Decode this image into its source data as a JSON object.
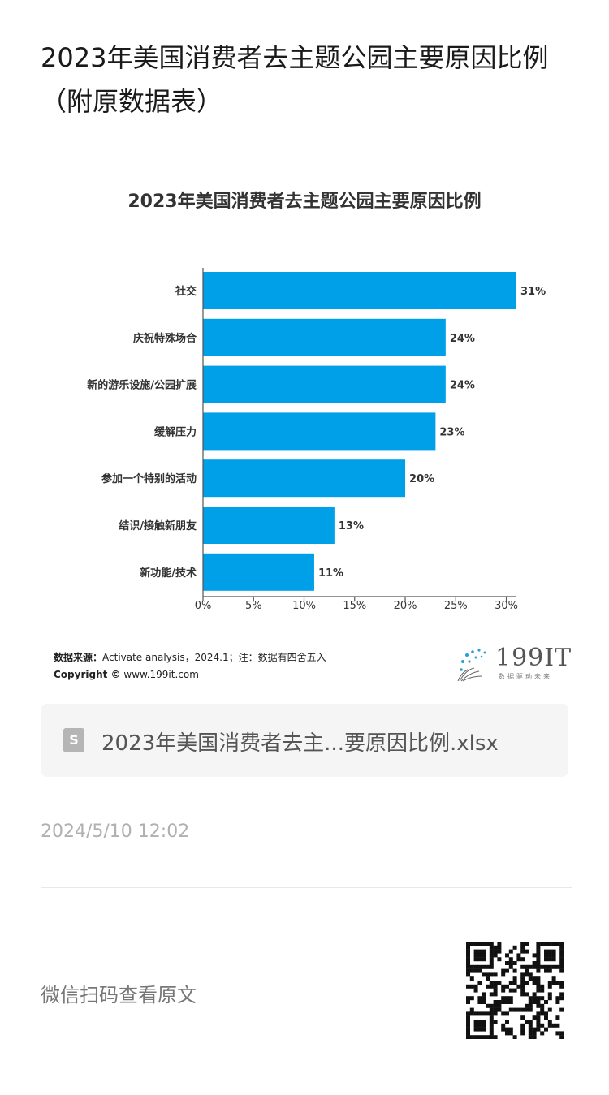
{
  "article": {
    "title": "2023年美国消费者去主题公园主要原因比例（附原数据表）"
  },
  "chart_data": {
    "type": "bar",
    "orientation": "horizontal",
    "title": "2023年美国消费者去主题公园主要原因比例",
    "categories": [
      "社交",
      "庆祝特殊场合",
      "新的游乐设施/公园扩展",
      "缓解压力",
      "参加一个特别的活动",
      "结识/接触新朋友",
      "新功能/技术"
    ],
    "values": [
      31,
      24,
      24,
      23,
      20,
      13,
      11
    ],
    "value_labels": [
      "31%",
      "24%",
      "24%",
      "23%",
      "20%",
      "13%",
      "11%"
    ],
    "xticks": [
      "0%",
      "5%",
      "10%",
      "15%",
      "20%",
      "25%",
      "30%"
    ],
    "xlim": [
      0,
      31
    ],
    "grid": false,
    "bar_color": "#00a0e9"
  },
  "source": {
    "label": "数据来源：",
    "text": "Activate analysis，2024.1；注：数据有四舍五入",
    "copyright_label": "Copyright ©",
    "copyright_text": "www.199it.com"
  },
  "logo": {
    "text": "199IT",
    "subtitle": "数据驱动未来"
  },
  "file": {
    "icon": "S",
    "name": "2023年美国消费者去主...要原因比例.xlsx"
  },
  "timestamp": "2024/5/10 12:02",
  "scan_text": "微信扫码查看原文"
}
